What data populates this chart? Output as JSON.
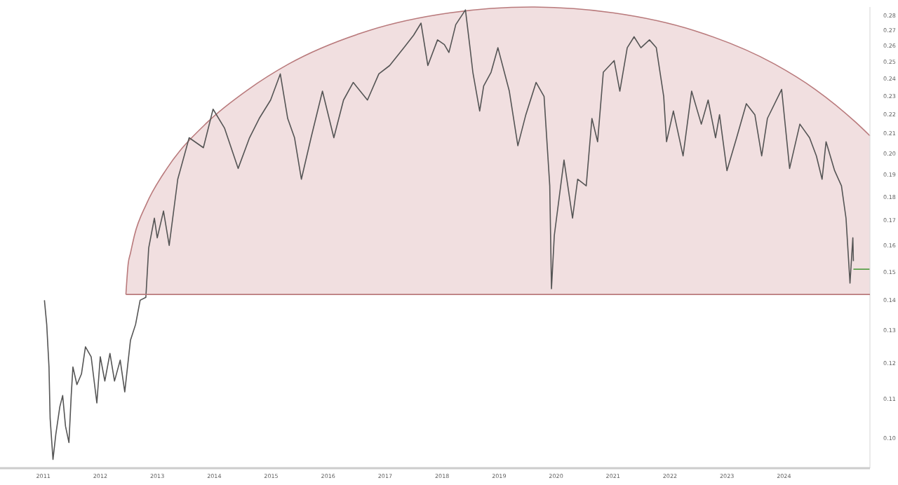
{
  "chart_data": {
    "type": "line",
    "x": [
      2011.02,
      2011.06,
      2011.1,
      2011.12,
      2011.17,
      2011.22,
      2011.29,
      2011.34,
      2011.39,
      2011.45,
      2011.49,
      2011.52,
      2011.59,
      2011.67,
      2011.74,
      2011.84,
      2011.94,
      2012.0,
      2012.08,
      2012.17,
      2012.25,
      2012.35,
      2012.43,
      2012.53,
      2012.62,
      2012.7,
      2012.8,
      2012.85,
      2012.95,
      2013.0,
      2013.11,
      2013.21,
      2013.36,
      2013.56,
      2013.81,
      2013.98,
      2014.18,
      2014.42,
      2014.62,
      2014.79,
      2014.99,
      2015.16,
      2015.29,
      2015.41,
      2015.53,
      2015.7,
      2015.9,
      2016.1,
      2016.27,
      2016.44,
      2016.69,
      2016.89,
      2017.08,
      2017.33,
      2017.5,
      2017.63,
      2017.75,
      2017.92,
      2018.04,
      2018.12,
      2018.24,
      2018.41,
      2018.49,
      2018.54,
      2018.66,
      2018.73,
      2018.86,
      2018.98,
      2019.18,
      2019.33,
      2019.47,
      2019.65,
      2019.79,
      2019.89,
      2019.92,
      2019.97,
      2020.14,
      2020.29,
      2020.38,
      2020.53,
      2020.63,
      2020.73,
      2020.83,
      2021.02,
      2021.12,
      2021.25,
      2021.37,
      2021.49,
      2021.64,
      2021.76,
      2021.89,
      2021.94,
      2022.06,
      2022.23,
      2022.38,
      2022.55,
      2022.67,
      2022.8,
      2022.87,
      2023.0,
      2023.17,
      2023.34,
      2023.49,
      2023.61,
      2023.71,
      2023.96,
      2024.1,
      2024.28,
      2024.45,
      2024.57,
      2024.67,
      2024.74,
      2024.89,
      2025.01,
      2025.09,
      2025.16,
      2025.21,
      2025.22
    ],
    "ref_lines": [
      {
        "axis": "y",
        "value": 0.142,
        "color": "#b97a7c"
      }
    ],
    "series": [
      {
        "type": "area",
        "color": "#f1dfe0",
        "x": [
          2012.45,
          2012.49,
          2012.53,
          2012.6,
          2012.81,
          2013.17,
          2013.88,
          2014.6,
          2015.31,
          2016.71,
          2018.14,
          2019.57,
          2021.0,
          2022.43,
          2023.83,
          2024.55,
          2025.26,
          2025.51
        ],
        "values": [
          0.142,
          0.153,
          0.157,
          0.164,
          0.177,
          0.193,
          0.216,
          0.234,
          0.249,
          0.27,
          0.282,
          0.286,
          0.282,
          0.27,
          0.249,
          0.234,
          0.216,
          0.209
        ]
      },
      {
        "color": "#555555",
        "values": [
          0.14,
          0.132,
          0.119,
          0.105,
          0.095,
          0.101,
          0.108,
          0.111,
          0.103,
          0.099,
          0.111,
          0.119,
          0.114,
          0.117,
          0.125,
          0.122,
          0.109,
          0.122,
          0.115,
          0.123,
          0.115,
          0.121,
          0.112,
          0.127,
          0.132,
          0.14,
          0.141,
          0.159,
          0.171,
          0.163,
          0.174,
          0.16,
          0.188,
          0.208,
          0.203,
          0.223,
          0.213,
          0.193,
          0.208,
          0.218,
          0.228,
          0.243,
          0.218,
          0.208,
          0.188,
          0.208,
          0.233,
          0.208,
          0.228,
          0.238,
          0.228,
          0.243,
          0.248,
          0.259,
          0.267,
          0.275,
          0.248,
          0.264,
          0.261,
          0.256,
          0.274,
          0.284,
          0.259,
          0.244,
          0.222,
          0.236,
          0.244,
          0.259,
          0.233,
          0.204,
          0.22,
          0.238,
          0.23,
          0.185,
          0.144,
          0.164,
          0.197,
          0.171,
          0.188,
          0.185,
          0.218,
          0.206,
          0.244,
          0.251,
          0.233,
          0.259,
          0.266,
          0.259,
          0.264,
          0.259,
          0.23,
          0.206,
          0.222,
          0.199,
          0.233,
          0.215,
          0.228,
          0.208,
          0.22,
          0.192,
          0.208,
          0.226,
          0.22,
          0.199,
          0.218,
          0.234,
          0.193,
          0.215,
          0.208,
          0.199,
          0.188,
          0.206,
          0.192,
          0.185,
          0.171,
          0.146,
          0.163,
          0.154
        ]
      },
      {
        "type": "line",
        "color": "#4a9a3a",
        "x": [
          2025.22,
          2025.51
        ],
        "values": [
          0.151,
          0.151
        ]
      }
    ],
    "xlim": [
      2010.24,
      2025.51
    ],
    "xticks": [
      2011,
      2012,
      2013,
      2014,
      2015,
      2016,
      2017,
      2018,
      2019,
      2020,
      2021,
      2022,
      2023,
      2024
    ],
    "ylim": [
      0.093,
      0.286
    ],
    "yticks": [
      {
        "value": 0.1,
        "label": "0.10"
      },
      0.11,
      0.12,
      0.13,
      0.14,
      0.15,
      0.16,
      0.17,
      0.18,
      0.19,
      {
        "value": 0.2,
        "label": "0.20"
      },
      0.21,
      0.22,
      0.23,
      0.24,
      0.25,
      0.26,
      0.27,
      0.28
    ],
    "log": true,
    "grid": false,
    "line_style": "solid"
  }
}
